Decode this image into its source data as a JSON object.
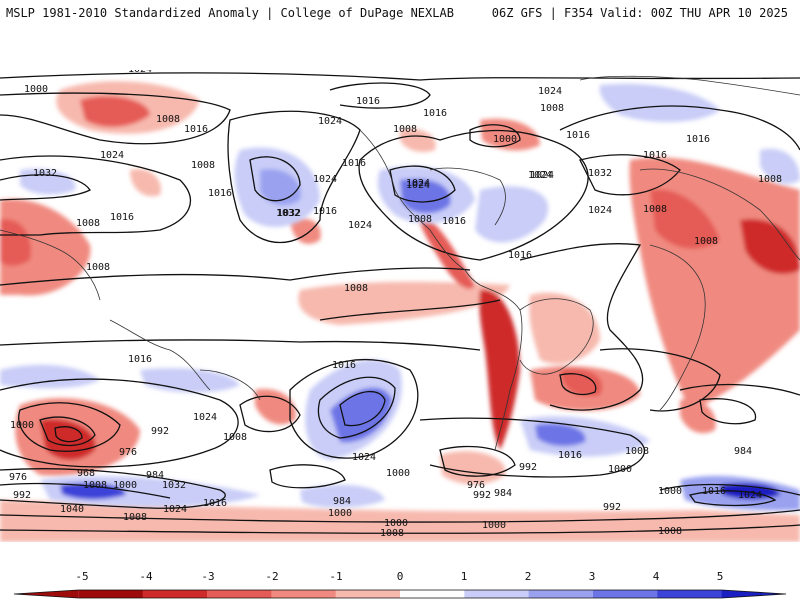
{
  "header": {
    "left": "MSLP 1981-2010 Standardized Anomaly | College of DuPage NEXLAB",
    "right": "06Z GFS | F354 Valid: 00Z THU APR 10 2025"
  },
  "isobar_labels": [
    "1024",
    "1000",
    "1016",
    "1008",
    "1024",
    "1008",
    "1016",
    "1024",
    "1000",
    "1016",
    "1024",
    "1032",
    "1008",
    "1016",
    "1016",
    "1024",
    "1008",
    "1016",
    "1008",
    "1024",
    "1016",
    "1032",
    "1024",
    "1008",
    "1016",
    "1024",
    "1032",
    "1024",
    "1016",
    "1008",
    "1016",
    "1024",
    "1008",
    "1032",
    "1024",
    "1008",
    "1016",
    "1008",
    "1016",
    "1016",
    "1024",
    "1016",
    "1008",
    "992",
    "1000",
    "1008",
    "1024",
    "1000",
    "976",
    "976",
    "968",
    "984",
    "992",
    "1008",
    "1032",
    "1040",
    "1024",
    "1016",
    "1000",
    "984",
    "1008",
    "1000",
    "1000",
    "976",
    "992",
    "984",
    "1016",
    "992",
    "1008",
    "1000",
    "992",
    "1008",
    "984",
    "1000",
    "1016",
    "1024",
    "1008",
    "1000"
  ],
  "colorbar": {
    "labels": [
      "-5",
      "-4",
      "-3",
      "-2",
      "-1",
      "0",
      "1",
      "2",
      "3",
      "4",
      "5"
    ],
    "colors": [
      "#9e0b0b",
      "#cf2a2a",
      "#e55b57",
      "#f08a80",
      "#f7b9ae",
      "#ffffff",
      "#c9cdf7",
      "#9aa2f0",
      "#6d74e6",
      "#3c43d8",
      "#1a1fc2"
    ]
  }
}
